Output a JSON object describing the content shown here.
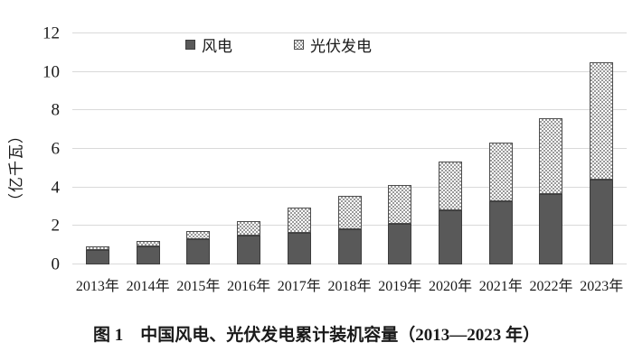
{
  "chart_data": {
    "type": "bar",
    "stacked": true,
    "categories": [
      "2013年",
      "2014年",
      "2015年",
      "2016年",
      "2017年",
      "2018年",
      "2019年",
      "2020年",
      "2021年",
      "2022年",
      "2023年"
    ],
    "series": [
      {
        "name": "风电",
        "style": "solid",
        "color": "#595959",
        "values": [
          0.77,
          0.96,
          1.29,
          1.49,
          1.64,
          1.84,
          2.1,
          2.81,
          3.28,
          3.65,
          4.41
        ]
      },
      {
        "name": "光伏发电",
        "style": "checker-pattern",
        "color": "#9a9a9a",
        "values": [
          0.19,
          0.28,
          0.43,
          0.77,
          1.3,
          1.74,
          2.04,
          2.53,
          3.06,
          3.93,
          6.09
        ]
      }
    ],
    "totals": [
      0.96,
      1.24,
      1.72,
      2.26,
      2.94,
      3.58,
      4.14,
      5.34,
      6.34,
      7.58,
      10.5
    ],
    "ylabel": "（亿千瓦）",
    "yticks": [
      0,
      2,
      4,
      6,
      8,
      10,
      12
    ],
    "ylim": [
      0,
      12
    ],
    "grid": "horizontal",
    "legend_position": "top-center",
    "caption": "图 1　中国风电、光伏发电累计装机容量（2013—2023 年）"
  },
  "colors": {
    "wind_bar": "#595959",
    "bar_border": "#3d3d3d",
    "pattern_dot": "#9a9a9a",
    "gridline": "#d9d9d9",
    "background": "#ffffff",
    "text": "#1a1a1a"
  }
}
